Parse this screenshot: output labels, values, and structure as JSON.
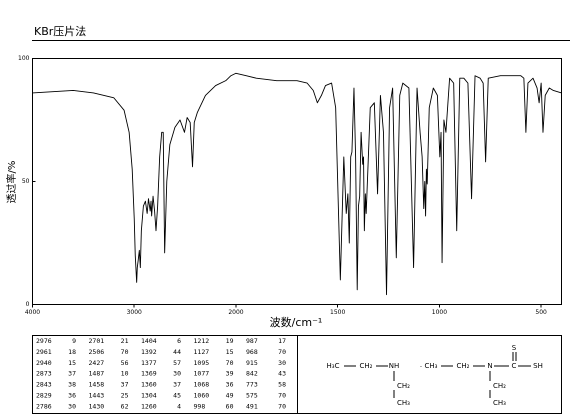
{
  "chart_data": {
    "type": "line",
    "title": "KBr压片法",
    "x_label": "波数/cm⁻¹",
    "y_label": "透过率/%",
    "xlim": [
      4000,
      400
    ],
    "ylim": [
      0,
      100
    ],
    "xticks": [
      4000,
      3000,
      2000,
      1500,
      1000,
      500
    ],
    "yticks": [
      0,
      50,
      100
    ],
    "grid": false,
    "color": "#000000",
    "x": [
      4000,
      3800,
      3600,
      3400,
      3200,
      3100,
      3050,
      3020,
      3000,
      2990,
      2976,
      2970,
      2961,
      2950,
      2940,
      2930,
      2910,
      2890,
      2873,
      2860,
      2843,
      2835,
      2829,
      2815,
      2800,
      2786,
      2770,
      2750,
      2730,
      2715,
      2701,
      2680,
      2650,
      2600,
      2550,
      2506,
      2480,
      2450,
      2427,
      2410,
      2380,
      2300,
      2200,
      2100,
      2050,
      2000,
      1950,
      1900,
      1800,
      1700,
      1650,
      1620,
      1600,
      1580,
      1560,
      1530,
      1510,
      1487,
      1470,
      1458,
      1450,
      1443,
      1436,
      1430,
      1420,
      1412,
      1404,
      1398,
      1392,
      1385,
      1377,
      1373,
      1369,
      1364,
      1360,
      1340,
      1320,
      1304,
      1290,
      1275,
      1260,
      1245,
      1230,
      1212,
      1195,
      1180,
      1150,
      1127,
      1110,
      1095,
      1085,
      1077,
      1072,
      1068,
      1064,
      1060,
      1050,
      1030,
      1010,
      998,
      992,
      987,
      978,
      968,
      950,
      930,
      915,
      900,
      880,
      860,
      842,
      825,
      800,
      785,
      773,
      760,
      700,
      600,
      585,
      575,
      565,
      540,
      520,
      510,
      500,
      491,
      480,
      460,
      440,
      400
    ],
    "values": [
      86,
      86.5,
      87,
      86,
      84,
      79,
      70,
      55,
      35,
      20,
      9,
      15,
      18,
      22,
      15,
      30,
      40,
      42,
      37,
      43,
      38,
      42,
      36,
      44,
      38,
      30,
      40,
      60,
      70,
      70,
      21,
      50,
      65,
      72,
      75,
      70,
      76,
      74,
      56,
      74,
      78,
      85,
      89,
      91,
      93,
      94,
      93,
      92,
      91,
      91,
      90,
      87,
      82,
      85,
      89,
      90,
      80,
      10,
      60,
      37,
      45,
      25,
      60,
      62,
      88,
      60,
      6,
      40,
      44,
      70,
      57,
      60,
      30,
      45,
      37,
      80,
      82,
      45,
      85,
      70,
      4,
      80,
      88,
      19,
      85,
      90,
      88,
      15,
      88,
      70,
      60,
      39,
      50,
      36,
      55,
      49,
      80,
      88,
      85,
      60,
      70,
      17,
      75,
      70,
      92,
      90,
      30,
      92,
      92,
      90,
      43,
      93,
      92,
      90,
      58,
      92,
      93,
      93,
      92,
      70,
      90,
      92,
      88,
      82,
      90,
      70,
      85,
      88,
      87,
      86
    ]
  },
  "peak_table": {
    "rows": [
      [
        2976,
        9,
        2701,
        21,
        1404,
        6,
        1212,
        19,
        987,
        17
      ],
      [
        2961,
        18,
        2506,
        70,
        1392,
        44,
        1127,
        15,
        968,
        70
      ],
      [
        2940,
        15,
        2427,
        56,
        1377,
        57,
        1095,
        70,
        915,
        30
      ],
      [
        2873,
        37,
        1487,
        10,
        1369,
        30,
        1077,
        39,
        842,
        43
      ],
      [
        2843,
        38,
        1458,
        37,
        1360,
        37,
        1068,
        36,
        773,
        58
      ],
      [
        2829,
        36,
        1443,
        25,
        1304,
        45,
        1060,
        49,
        575,
        70
      ],
      [
        2786,
        30,
        1430,
        62,
        1260,
        4,
        998,
        60,
        491,
        70
      ]
    ]
  },
  "structure": {
    "labels": [
      "H₃C",
      "CH₂",
      "NH",
      "CH₂",
      "CH₃",
      "·",
      "CH₃",
      "CH₂",
      "N",
      "C",
      "S",
      "SH",
      "CH₂",
      "CH₃"
    ]
  }
}
